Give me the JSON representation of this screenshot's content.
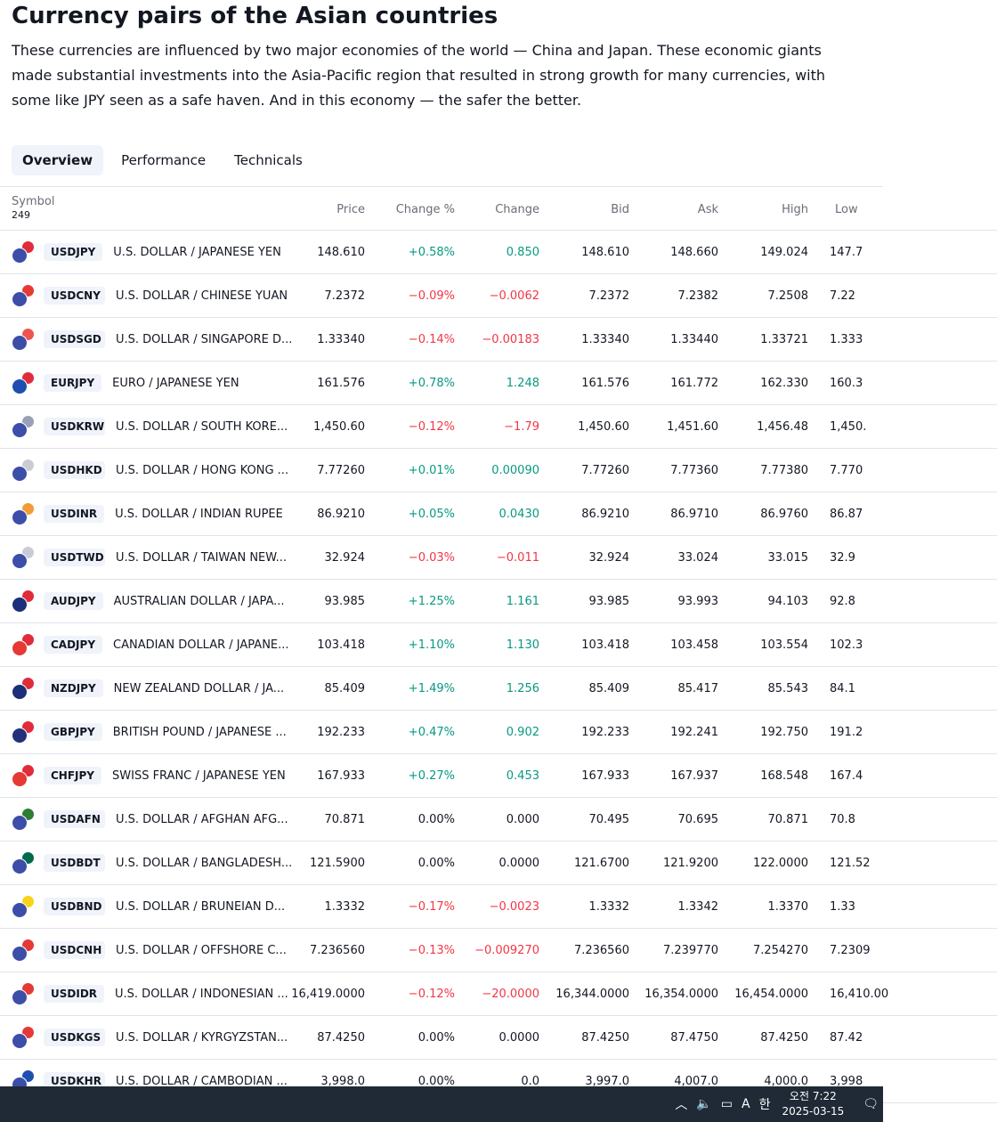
{
  "page": {
    "title": "Currency pairs of the Asian countries",
    "description": "These currencies are influenced by two major economies of the world — China and Japan. These economic giants made substantial investments into the Asia-Pacific region that resulted in strong growth for many currencies, with some like JPY seen as a safe haven. And in this economy — the safer the better."
  },
  "tabs": [
    {
      "label": "Overview",
      "active": true
    },
    {
      "label": "Performance",
      "active": false
    },
    {
      "label": "Technicals",
      "active": false
    }
  ],
  "table": {
    "headers": {
      "symbol": "Symbol",
      "count": "249",
      "price": "Price",
      "change_pct": "Change %",
      "change": "Change",
      "bid": "Bid",
      "ask": "Ask",
      "high": "High",
      "low": "Low"
    },
    "rows": [
      {
        "ticker": "USDJPY",
        "name": "U.S. DOLLAR / JAPANESE YEN",
        "price": "148.610",
        "change_pct": "+0.58%",
        "change": "0.850",
        "bid": "148.610",
        "ask": "148.660",
        "high": "149.024",
        "low": "147.7",
        "dir": "pos",
        "flag_base": "#3c4ea8",
        "flag_quote": "#e02b3b"
      },
      {
        "ticker": "USDCNY",
        "name": "U.S. DOLLAR / CHINESE YUAN",
        "price": "7.2372",
        "change_pct": "−0.09%",
        "change": "−0.0062",
        "bid": "7.2372",
        "ask": "7.2382",
        "high": "7.2508",
        "low": "7.22",
        "dir": "neg",
        "flag_base": "#3c4ea8",
        "flag_quote": "#e53935"
      },
      {
        "ticker": "USDSGD",
        "name": "U.S. DOLLAR / SINGAPORE D...",
        "price": "1.33340",
        "change_pct": "−0.14%",
        "change": "−0.00183",
        "bid": "1.33340",
        "ask": "1.33440",
        "high": "1.33721",
        "low": "1.333",
        "dir": "neg",
        "flag_base": "#3c4ea8",
        "flag_quote": "#ef5350"
      },
      {
        "ticker": "EURJPY",
        "name": "EURO / JAPANESE YEN",
        "price": "161.576",
        "change_pct": "+0.78%",
        "change": "1.248",
        "bid": "161.576",
        "ask": "161.772",
        "high": "162.330",
        "low": "160.3",
        "dir": "pos",
        "flag_base": "#1e4fb0",
        "flag_quote": "#e02b3b"
      },
      {
        "ticker": "USDKRW",
        "name": "U.S. DOLLAR / SOUTH KORE...",
        "price": "1,450.60",
        "change_pct": "−0.12%",
        "change": "−1.79",
        "bid": "1,450.60",
        "ask": "1,451.60",
        "high": "1,456.48",
        "low": "1,450.",
        "dir": "neg",
        "flag_base": "#3c4ea8",
        "flag_quote": "#9aa0b5"
      },
      {
        "ticker": "USDHKD",
        "name": "U.S. DOLLAR / HONG KONG ...",
        "price": "7.77260",
        "change_pct": "+0.01%",
        "change": "0.00090",
        "bid": "7.77260",
        "ask": "7.77360",
        "high": "7.77380",
        "low": "7.770",
        "dir": "pos",
        "flag_base": "#3c4ea8",
        "flag_quote": "#c9ccd4"
      },
      {
        "ticker": "USDINR",
        "name": "U.S. DOLLAR / INDIAN RUPEE",
        "price": "86.9210",
        "change_pct": "+0.05%",
        "change": "0.0430",
        "bid": "86.9210",
        "ask": "86.9710",
        "high": "86.9760",
        "low": "86.87",
        "dir": "pos",
        "flag_base": "#3c4ea8",
        "flag_quote": "#f39c34"
      },
      {
        "ticker": "USDTWD",
        "name": "U.S. DOLLAR / TAIWAN NEW...",
        "price": "32.924",
        "change_pct": "−0.03%",
        "change": "−0.011",
        "bid": "32.924",
        "ask": "33.024",
        "high": "33.015",
        "low": "32.9",
        "dir": "neg",
        "flag_base": "#3c4ea8",
        "flag_quote": "#c9ccd4"
      },
      {
        "ticker": "AUDJPY",
        "name": "AUSTRALIAN DOLLAR / JAPA...",
        "price": "93.985",
        "change_pct": "+1.25%",
        "change": "1.161",
        "bid": "93.985",
        "ask": "93.993",
        "high": "94.103",
        "low": "92.8",
        "dir": "pos",
        "flag_base": "#1b2f7a",
        "flag_quote": "#e02b3b"
      },
      {
        "ticker": "CADJPY",
        "name": "CANADIAN DOLLAR / JAPANE...",
        "price": "103.418",
        "change_pct": "+1.10%",
        "change": "1.130",
        "bid": "103.418",
        "ask": "103.458",
        "high": "103.554",
        "low": "102.3",
        "dir": "pos",
        "flag_base": "#e53935",
        "flag_quote": "#e02b3b"
      },
      {
        "ticker": "NZDJPY",
        "name": "NEW ZEALAND DOLLAR / JA...",
        "price": "85.409",
        "change_pct": "+1.49%",
        "change": "1.256",
        "bid": "85.409",
        "ask": "85.417",
        "high": "85.543",
        "low": "84.1",
        "dir": "pos",
        "flag_base": "#1b2f7a",
        "flag_quote": "#e02b3b"
      },
      {
        "ticker": "GBPJPY",
        "name": "BRITISH POUND / JAPANESE ...",
        "price": "192.233",
        "change_pct": "+0.47%",
        "change": "0.902",
        "bid": "192.233",
        "ask": "192.241",
        "high": "192.750",
        "low": "191.2",
        "dir": "pos",
        "flag_base": "#23307a",
        "flag_quote": "#e02b3b"
      },
      {
        "ticker": "CHFJPY",
        "name": "SWISS FRANC / JAPANESE YEN",
        "price": "167.933",
        "change_pct": "+0.27%",
        "change": "0.453",
        "bid": "167.933",
        "ask": "167.937",
        "high": "168.548",
        "low": "167.4",
        "dir": "pos",
        "flag_base": "#e53935",
        "flag_quote": "#e02b3b"
      },
      {
        "ticker": "USDAFN",
        "name": "U.S. DOLLAR / AFGHAN AFG...",
        "price": "70.871",
        "change_pct": "0.00%",
        "change": "0.000",
        "bid": "70.495",
        "ask": "70.695",
        "high": "70.871",
        "low": "70.8",
        "dir": "neutral",
        "flag_base": "#3c4ea8",
        "flag_quote": "#2e7d32"
      },
      {
        "ticker": "USDBDT",
        "name": "U.S. DOLLAR / BANGLADESH...",
        "price": "121.5900",
        "change_pct": "0.00%",
        "change": "0.0000",
        "bid": "121.6700",
        "ask": "121.9200",
        "high": "122.0000",
        "low": "121.52",
        "dir": "neutral",
        "flag_base": "#3c4ea8",
        "flag_quote": "#006a4e"
      },
      {
        "ticker": "USDBND",
        "name": "U.S. DOLLAR / BRUNEIAN D...",
        "price": "1.3332",
        "change_pct": "−0.17%",
        "change": "−0.0023",
        "bid": "1.3332",
        "ask": "1.3342",
        "high": "1.3370",
        "low": "1.33",
        "dir": "neg",
        "flag_base": "#3c4ea8",
        "flag_quote": "#f7d417"
      },
      {
        "ticker": "USDCNH",
        "name": "U.S. DOLLAR / OFFSHORE C...",
        "price": "7.236560",
        "change_pct": "−0.13%",
        "change": "−0.009270",
        "bid": "7.236560",
        "ask": "7.239770",
        "high": "7.254270",
        "low": "7.2309",
        "dir": "neg",
        "flag_base": "#3c4ea8",
        "flag_quote": "#e53935"
      },
      {
        "ticker": "USDIDR",
        "name": "U.S. DOLLAR / INDONESIAN ...",
        "price": "16,419.0000",
        "change_pct": "−0.12%",
        "change": "−20.0000",
        "bid": "16,344.0000",
        "ask": "16,354.0000",
        "high": "16,454.0000",
        "low": "16,410.00",
        "dir": "neg",
        "flag_base": "#3c4ea8",
        "flag_quote": "#e53935"
      },
      {
        "ticker": "USDKGS",
        "name": "U.S. DOLLAR / KYRGYZSTAN...",
        "price": "87.4250",
        "change_pct": "0.00%",
        "change": "0.0000",
        "bid": "87.4250",
        "ask": "87.4750",
        "high": "87.4250",
        "low": "87.42",
        "dir": "neutral",
        "flag_base": "#3c4ea8",
        "flag_quote": "#e53935"
      },
      {
        "ticker": "USDKHR",
        "name": "U.S. DOLLAR / CAMBODIAN ...",
        "price": "3,998.0",
        "change_pct": "0.00%",
        "change": "0.0",
        "bid": "3,997.0",
        "ask": "4,007.0",
        "high": "4,000.0",
        "low": "3,998",
        "dir": "neutral",
        "flag_base": "#3c4ea8",
        "flag_quote": "#1e4fb0"
      }
    ]
  },
  "taskbar": {
    "ime": "A",
    "lang": "한",
    "time": "오전 7:22",
    "date": "2025-03-15"
  }
}
